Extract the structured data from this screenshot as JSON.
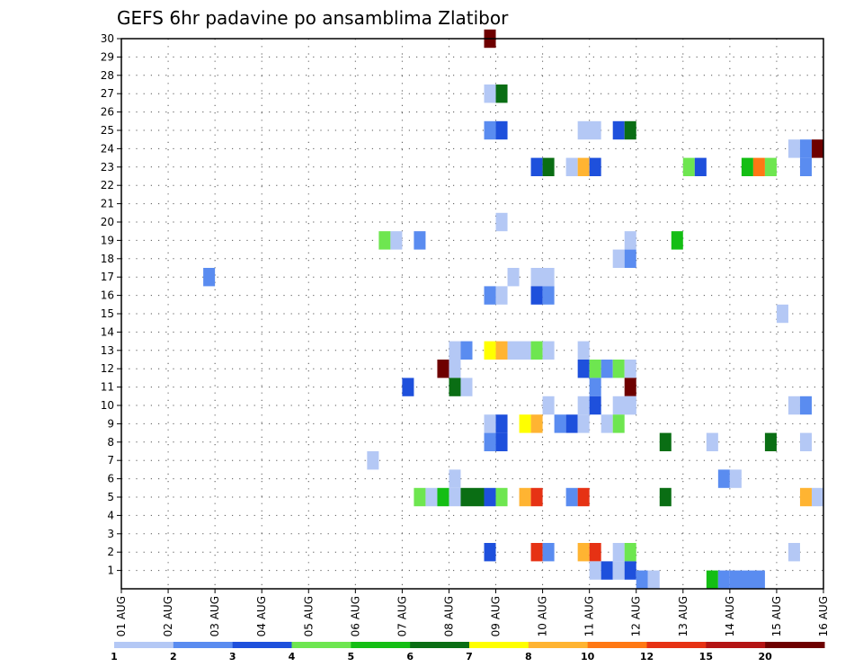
{
  "chart_data": {
    "type": "heatmap",
    "title": "GEFS 6hr padavine po ansamblima Zlatibor",
    "y_ticks": [
      "1",
      "2",
      "3",
      "4",
      "5",
      "6",
      "7",
      "8",
      "9",
      "10",
      "11",
      "12",
      "13",
      "14",
      "15",
      "16",
      "17",
      "18",
      "19",
      "20",
      "21",
      "22",
      "23",
      "24",
      "25",
      "26",
      "27",
      "28",
      "29",
      "30"
    ],
    "y_range": [
      0,
      30
    ],
    "x_range": [
      0,
      15
    ],
    "x_tick_labels": [
      "01 AUG",
      "02 AUG",
      "03 AUG",
      "04 AUG",
      "05 AUG",
      "06 AUG",
      "07 AUG",
      "08 AUG",
      "09 AUG",
      "10 AUG",
      "11 AUG",
      "12 AUG",
      "13 AUG",
      "14 AUG",
      "15 AUG",
      "16 AUG"
    ],
    "grid": true,
    "colorbar": {
      "colors": [
        "#b4c8f5",
        "#5a8cf0",
        "#1e50dc",
        "#6ee650",
        "#14be14",
        "#0a6e14",
        "#ffff00",
        "#ffb432",
        "#ff7814",
        "#e63214",
        "#b41414",
        "#6e0000"
      ],
      "labels": [
        "1",
        "2",
        "3",
        "4",
        "5",
        "6",
        "7",
        "8",
        "10",
        "12",
        "15",
        "20"
      ]
    },
    "cells": [
      {
        "x": 7.75,
        "y": 30,
        "w": 0.25,
        "c": 11
      },
      {
        "x": 7.75,
        "y": 27,
        "w": 0.25,
        "c": 0
      },
      {
        "x": 8.0,
        "y": 27,
        "w": 0.25,
        "c": 5
      },
      {
        "x": 7.75,
        "y": 25,
        "w": 0.25,
        "c": 1
      },
      {
        "x": 8.0,
        "y": 25,
        "w": 0.25,
        "c": 2
      },
      {
        "x": 9.75,
        "y": 25,
        "w": 0.5,
        "c": 0
      },
      {
        "x": 10.5,
        "y": 25,
        "w": 0.25,
        "c": 2
      },
      {
        "x": 10.75,
        "y": 25,
        "w": 0.25,
        "c": 5
      },
      {
        "x": 14.25,
        "y": 24,
        "w": 0.25,
        "c": 0
      },
      {
        "x": 14.5,
        "y": 24,
        "w": 0.25,
        "c": 1
      },
      {
        "x": 14.75,
        "y": 24,
        "w": 0.25,
        "c": 11
      },
      {
        "x": 8.75,
        "y": 23,
        "w": 0.25,
        "c": 2
      },
      {
        "x": 9.0,
        "y": 23,
        "w": 0.25,
        "c": 5
      },
      {
        "x": 9.5,
        "y": 23,
        "w": 0.25,
        "c": 0
      },
      {
        "x": 9.75,
        "y": 23,
        "w": 0.25,
        "c": 7
      },
      {
        "x": 10.0,
        "y": 23,
        "w": 0.25,
        "c": 2
      },
      {
        "x": 12.0,
        "y": 23,
        "w": 0.25,
        "c": 3
      },
      {
        "x": 12.25,
        "y": 23,
        "w": 0.25,
        "c": 2
      },
      {
        "x": 13.25,
        "y": 23,
        "w": 0.25,
        "c": 4
      },
      {
        "x": 13.5,
        "y": 23,
        "w": 0.25,
        "c": 8
      },
      {
        "x": 13.75,
        "y": 23,
        "w": 0.25,
        "c": 3
      },
      {
        "x": 14.5,
        "y": 23,
        "w": 0.25,
        "c": 1
      },
      {
        "x": 8.0,
        "y": 20,
        "w": 0.25,
        "c": 0
      },
      {
        "x": 5.5,
        "y": 19,
        "w": 0.25,
        "c": 3
      },
      {
        "x": 5.75,
        "y": 19,
        "w": 0.25,
        "c": 0
      },
      {
        "x": 6.25,
        "y": 19,
        "w": 0.25,
        "c": 1
      },
      {
        "x": 10.75,
        "y": 19,
        "w": 0.25,
        "c": 0
      },
      {
        "x": 11.75,
        "y": 19,
        "w": 0.25,
        "c": 4
      },
      {
        "x": 10.5,
        "y": 18,
        "w": 0.25,
        "c": 0
      },
      {
        "x": 10.75,
        "y": 18,
        "w": 0.25,
        "c": 1
      },
      {
        "x": 1.75,
        "y": 17,
        "w": 0.25,
        "c": 1
      },
      {
        "x": 8.25,
        "y": 17,
        "w": 0.25,
        "c": 0
      },
      {
        "x": 8.75,
        "y": 17,
        "w": 0.5,
        "c": 0
      },
      {
        "x": 7.75,
        "y": 16,
        "w": 0.25,
        "c": 1
      },
      {
        "x": 8.0,
        "y": 16,
        "w": 0.25,
        "c": 0
      },
      {
        "x": 8.75,
        "y": 16,
        "w": 0.25,
        "c": 2
      },
      {
        "x": 9.0,
        "y": 16,
        "w": 0.25,
        "c": 1
      },
      {
        "x": 14.0,
        "y": 15,
        "w": 0.25,
        "c": 0
      },
      {
        "x": 7.0,
        "y": 13,
        "w": 0.25,
        "c": 0
      },
      {
        "x": 7.25,
        "y": 13,
        "w": 0.25,
        "c": 1
      },
      {
        "x": 7.75,
        "y": 13,
        "w": 0.25,
        "c": 6
      },
      {
        "x": 8.0,
        "y": 13,
        "w": 0.25,
        "c": 7
      },
      {
        "x": 8.25,
        "y": 13,
        "w": 0.5,
        "c": 0
      },
      {
        "x": 8.75,
        "y": 13,
        "w": 0.25,
        "c": 3
      },
      {
        "x": 9.0,
        "y": 13,
        "w": 0.25,
        "c": 0
      },
      {
        "x": 9.75,
        "y": 13,
        "w": 0.25,
        "c": 0
      },
      {
        "x": 6.75,
        "y": 12,
        "w": 0.25,
        "c": 11
      },
      {
        "x": 7.0,
        "y": 12,
        "w": 0.25,
        "c": 0
      },
      {
        "x": 9.75,
        "y": 12,
        "w": 0.25,
        "c": 2
      },
      {
        "x": 10.0,
        "y": 12,
        "w": 0.25,
        "c": 3
      },
      {
        "x": 10.25,
        "y": 12,
        "w": 0.25,
        "c": 1
      },
      {
        "x": 10.5,
        "y": 12,
        "w": 0.25,
        "c": 3
      },
      {
        "x": 10.75,
        "y": 12,
        "w": 0.25,
        "c": 0
      },
      {
        "x": 6.0,
        "y": 11,
        "w": 0.25,
        "c": 2
      },
      {
        "x": 7.0,
        "y": 11,
        "w": 0.25,
        "c": 5
      },
      {
        "x": 7.25,
        "y": 11,
        "w": 0.25,
        "c": 0
      },
      {
        "x": 10.0,
        "y": 11,
        "w": 0.25,
        "c": 1
      },
      {
        "x": 10.75,
        "y": 11,
        "w": 0.25,
        "c": 11
      },
      {
        "x": 10.75,
        "y": 10,
        "w": 0.25,
        "c": 0
      },
      {
        "x": 9.0,
        "y": 10,
        "w": 0.25,
        "c": 0
      },
      {
        "x": 9.75,
        "y": 10,
        "w": 0.25,
        "c": 0
      },
      {
        "x": 10.0,
        "y": 10,
        "w": 0.25,
        "c": 2
      },
      {
        "x": 10.5,
        "y": 10,
        "w": 0.5,
        "c": 0
      },
      {
        "x": 14.25,
        "y": 10,
        "w": 0.25,
        "c": 0
      },
      {
        "x": 14.5,
        "y": 10,
        "w": 0.25,
        "c": 1
      },
      {
        "x": 7.75,
        "y": 9,
        "w": 0.25,
        "c": 0
      },
      {
        "x": 8.0,
        "y": 9,
        "w": 0.25,
        "c": 2
      },
      {
        "x": 8.5,
        "y": 9,
        "w": 0.25,
        "c": 6
      },
      {
        "x": 8.75,
        "y": 9,
        "w": 0.25,
        "c": 7
      },
      {
        "x": 9.25,
        "y": 9,
        "w": 0.25,
        "c": 1
      },
      {
        "x": 9.5,
        "y": 9,
        "w": 0.25,
        "c": 2
      },
      {
        "x": 9.75,
        "y": 9,
        "w": 0.25,
        "c": 0
      },
      {
        "x": 10.25,
        "y": 9,
        "w": 0.25,
        "c": 0
      },
      {
        "x": 10.5,
        "y": 9,
        "w": 0.25,
        "c": 3
      },
      {
        "x": 7.75,
        "y": 8,
        "w": 0.25,
        "c": 1
      },
      {
        "x": 8.0,
        "y": 8,
        "w": 0.25,
        "c": 2
      },
      {
        "x": 11.5,
        "y": 8,
        "w": 0.25,
        "c": 5
      },
      {
        "x": 12.5,
        "y": 8,
        "w": 0.25,
        "c": 0
      },
      {
        "x": 13.75,
        "y": 8,
        "w": 0.25,
        "c": 5
      },
      {
        "x": 14.5,
        "y": 8,
        "w": 0.25,
        "c": 0
      },
      {
        "x": 5.25,
        "y": 7,
        "w": 0.25,
        "c": 0
      },
      {
        "x": 7.0,
        "y": 6,
        "w": 0.25,
        "c": 0
      },
      {
        "x": 12.75,
        "y": 6,
        "w": 0.25,
        "c": 1
      },
      {
        "x": 13.0,
        "y": 6,
        "w": 0.25,
        "c": 0
      },
      {
        "x": 6.25,
        "y": 5,
        "w": 0.25,
        "c": 3
      },
      {
        "x": 6.5,
        "y": 5,
        "w": 0.25,
        "c": 0
      },
      {
        "x": 6.75,
        "y": 5,
        "w": 0.25,
        "c": 4
      },
      {
        "x": 7.0,
        "y": 5,
        "w": 0.25,
        "c": 0
      },
      {
        "x": 7.25,
        "y": 5,
        "w": 0.25,
        "c": 5
      },
      {
        "x": 7.5,
        "y": 5,
        "w": 0.25,
        "c": 5
      },
      {
        "x": 7.75,
        "y": 5,
        "w": 0.25,
        "c": 2
      },
      {
        "x": 8.0,
        "y": 5,
        "w": 0.25,
        "c": 3
      },
      {
        "x": 8.5,
        "y": 5,
        "w": 0.25,
        "c": 7
      },
      {
        "x": 8.75,
        "y": 5,
        "w": 0.25,
        "c": 9
      },
      {
        "x": 9.5,
        "y": 5,
        "w": 0.25,
        "c": 1
      },
      {
        "x": 9.75,
        "y": 5,
        "w": 0.25,
        "c": 9
      },
      {
        "x": 11.5,
        "y": 5,
        "w": 0.25,
        "c": 5
      },
      {
        "x": 14.5,
        "y": 5,
        "w": 0.25,
        "c": 7
      },
      {
        "x": 14.75,
        "y": 5,
        "w": 0.25,
        "c": 0
      },
      {
        "x": 7.75,
        "y": 2,
        "w": 0.25,
        "c": 2
      },
      {
        "x": 8.75,
        "y": 2,
        "w": 0.25,
        "c": 9
      },
      {
        "x": 9.0,
        "y": 2,
        "w": 0.25,
        "c": 1
      },
      {
        "x": 9.75,
        "y": 2,
        "w": 0.25,
        "c": 7
      },
      {
        "x": 10.0,
        "y": 2,
        "w": 0.25,
        "c": 9
      },
      {
        "x": 10.5,
        "y": 2,
        "w": 0.25,
        "c": 0
      },
      {
        "x": 10.75,
        "y": 2,
        "w": 0.25,
        "c": 3
      },
      {
        "x": 14.25,
        "y": 2,
        "w": 0.25,
        "c": 0
      },
      {
        "x": 10.0,
        "y": 1,
        "w": 0.25,
        "c": 0
      },
      {
        "x": 10.25,
        "y": 1,
        "w": 0.25,
        "c": 2
      },
      {
        "x": 10.5,
        "y": 1,
        "w": 0.25,
        "c": 0
      },
      {
        "x": 10.75,
        "y": 1,
        "w": 0.25,
        "c": 2
      },
      {
        "x": 11.0,
        "y": 0.5,
        "w": 0.25,
        "c": 1
      },
      {
        "x": 11.25,
        "y": 0.5,
        "w": 0.25,
        "c": 0
      },
      {
        "x": 12.5,
        "y": 0.5,
        "w": 0.25,
        "c": 4
      },
      {
        "x": 12.75,
        "y": 0.5,
        "w": 0.25,
        "c": 1
      },
      {
        "x": 13.0,
        "y": 0.5,
        "w": 0.75,
        "c": 1
      }
    ]
  }
}
